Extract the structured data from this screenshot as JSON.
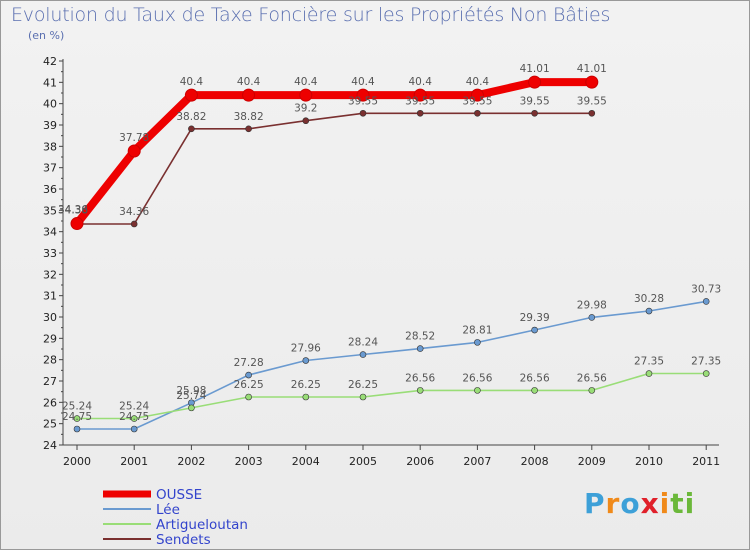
{
  "chart_data": {
    "type": "line",
    "title": "Evolution du Taux de Taxe Foncière sur les Propriétés Non Bâties",
    "subtitle": "(en %)",
    "xlabel": "",
    "ylabel": "",
    "categories": [
      "2000",
      "2001",
      "2002",
      "2003",
      "2004",
      "2005",
      "2006",
      "2007",
      "2008",
      "2009",
      "2010",
      "2011"
    ],
    "ylim": [
      24,
      42
    ],
    "yticks": [
      24,
      25,
      26,
      27,
      28,
      29,
      30,
      31,
      32,
      33,
      34,
      35,
      36,
      37,
      38,
      39,
      40,
      41,
      42
    ],
    "grid": false,
    "legend_position": "bottom-left",
    "series": [
      {
        "name": "OUSSE",
        "color": "#ee0000",
        "values": [
          34.38,
          37.78,
          40.4,
          40.4,
          40.4,
          40.4,
          40.4,
          40.4,
          41.01,
          41.01,
          null,
          null
        ],
        "labels": [
          "34.38",
          "37.78",
          "40.4",
          "40.4",
          "40.4",
          "40.4",
          "40.4",
          "40.4",
          "41.01",
          "41.01",
          "",
          ""
        ]
      },
      {
        "name": "Lée",
        "color": "#6a9ad0",
        "values": [
          24.75,
          24.75,
          25.98,
          27.28,
          27.96,
          28.24,
          28.52,
          28.81,
          29.39,
          29.98,
          30.28,
          30.73
        ],
        "labels": [
          "24.75",
          "24.75",
          "25.98",
          "27.28",
          "27.96",
          "28.24",
          "28.52",
          "28.81",
          "29.39",
          "29.98",
          "30.28",
          "30.73"
        ]
      },
      {
        "name": "Artigueloutan",
        "color": "#99dd77",
        "values": [
          25.24,
          25.24,
          25.74,
          26.25,
          26.25,
          26.25,
          26.56,
          26.56,
          26.56,
          26.56,
          27.35,
          27.35
        ],
        "labels": [
          "25.24",
          "25.24",
          "25.74",
          "26.25",
          "26.25",
          "26.25",
          "26.56",
          "26.56",
          "26.56",
          "26.56",
          "27.35",
          "27.35"
        ]
      },
      {
        "name": "Sendets",
        "color": "#7a3030",
        "values": [
          34.36,
          34.36,
          38.82,
          38.82,
          39.2,
          39.55,
          39.55,
          39.55,
          39.55,
          39.55,
          null,
          null
        ],
        "labels": [
          "34.36",
          "34.36",
          "38.82",
          "38.82",
          "39.2",
          "39.55",
          "39.55",
          "39.55",
          "39.55",
          "39.55",
          "",
          ""
        ]
      }
    ]
  },
  "logo": {
    "text_parts": [
      "P",
      "r",
      "o",
      "x",
      "i",
      "ti"
    ]
  }
}
